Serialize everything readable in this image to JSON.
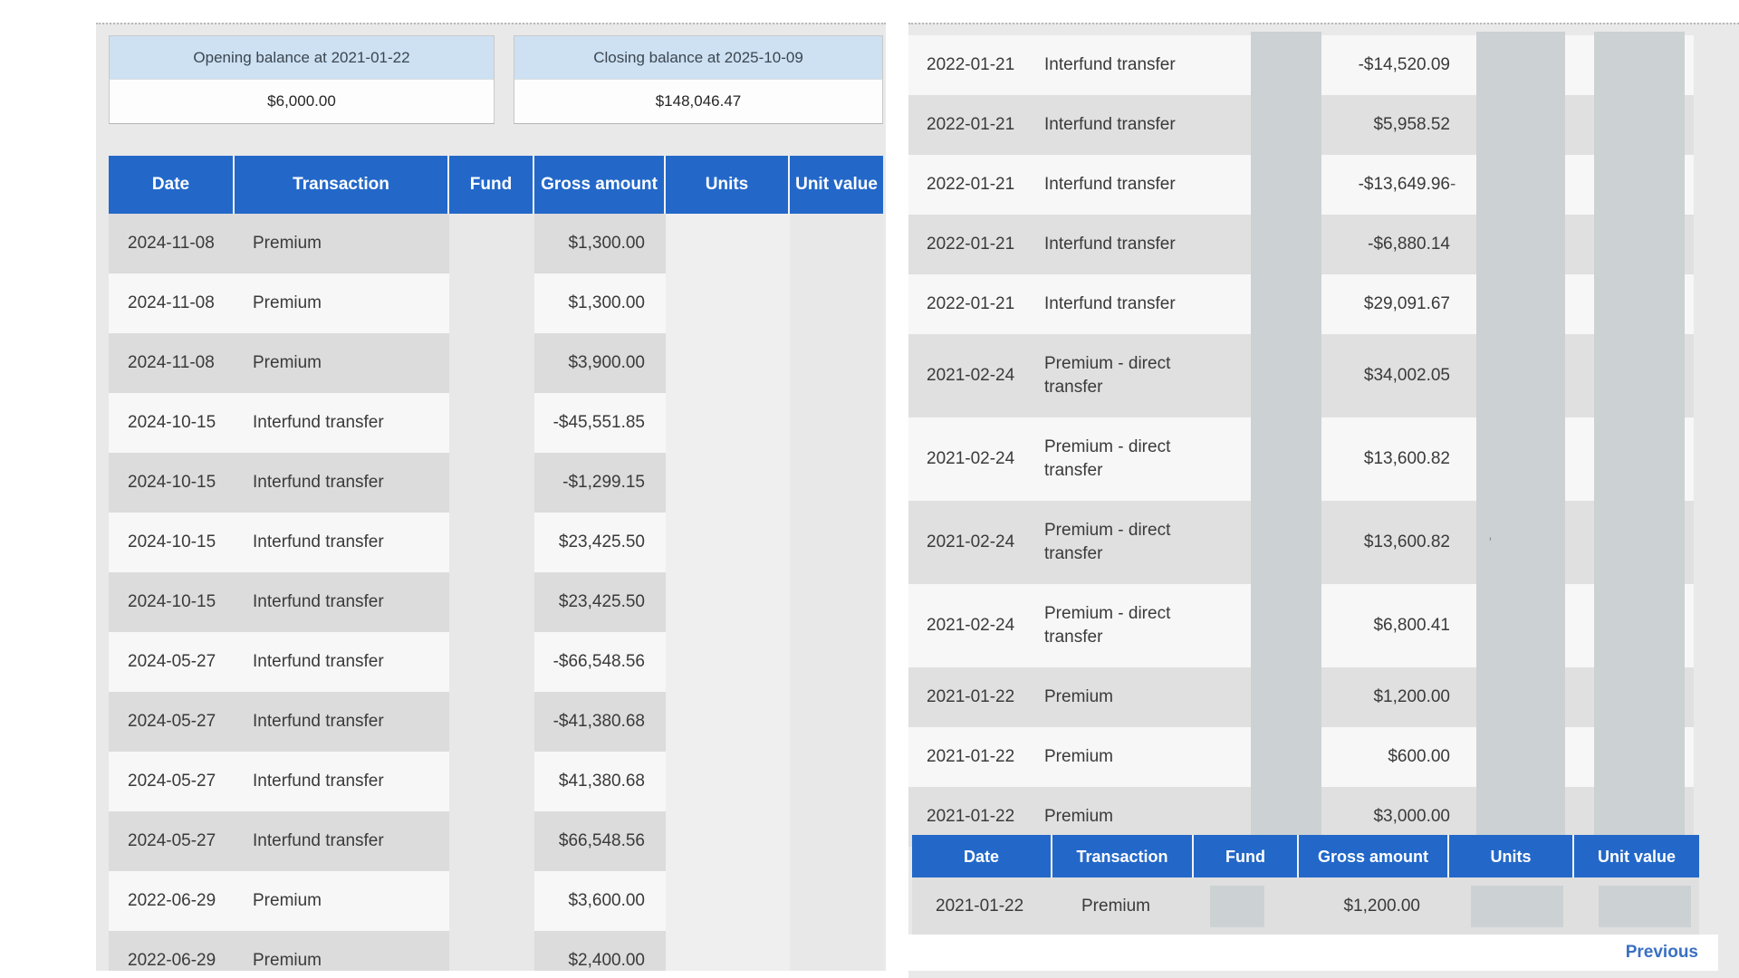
{
  "balances": {
    "opening": {
      "label": "Opening balance at 2021-01-22",
      "value": "$6,000.00"
    },
    "closing": {
      "label": "Closing balance at 2025-10-09",
      "value": "$148,046.47"
    }
  },
  "columns": [
    "Date",
    "Transaction",
    "Fund",
    "Gross amount",
    "Units",
    "Unit value"
  ],
  "left_table": {
    "rows": [
      {
        "date": "2024-11-08",
        "transaction": "Premium",
        "gross_amount": "$1,300.00"
      },
      {
        "date": "2024-11-08",
        "transaction": "Premium",
        "gross_amount": "$1,300.00"
      },
      {
        "date": "2024-11-08",
        "transaction": "Premium",
        "gross_amount": "$3,900.00"
      },
      {
        "date": "2024-10-15",
        "transaction": "Interfund transfer",
        "gross_amount": "-$45,551.85"
      },
      {
        "date": "2024-10-15",
        "transaction": "Interfund transfer",
        "gross_amount": "-$1,299.15"
      },
      {
        "date": "2024-10-15",
        "transaction": "Interfund transfer",
        "gross_amount": "$23,425.50"
      },
      {
        "date": "2024-10-15",
        "transaction": "Interfund transfer",
        "gross_amount": "$23,425.50"
      },
      {
        "date": "2024-05-27",
        "transaction": "Interfund transfer",
        "gross_amount": "-$66,548.56"
      },
      {
        "date": "2024-05-27",
        "transaction": "Interfund transfer",
        "gross_amount": "-$41,380.68"
      },
      {
        "date": "2024-05-27",
        "transaction": "Interfund transfer",
        "gross_amount": "$41,380.68"
      },
      {
        "date": "2024-05-27",
        "transaction": "Interfund transfer",
        "gross_amount": "$66,548.56"
      },
      {
        "date": "2022-06-29",
        "transaction": "Premium",
        "gross_amount": "$3,600.00"
      },
      {
        "date": "2022-06-29",
        "transaction": "Premium",
        "gross_amount": "$2,400.00"
      }
    ]
  },
  "right_table": {
    "rows": [
      {
        "date": "2022-01-21",
        "transaction": "Interfund transfer",
        "gross_amount": "-$14,520.09"
      },
      {
        "date": "2022-01-21",
        "transaction": "Interfund transfer",
        "gross_amount": "$5,958.52"
      },
      {
        "date": "2022-01-21",
        "transaction": "Interfund transfer",
        "gross_amount": "-$13,649.96",
        "units_partial": "-"
      },
      {
        "date": "2022-01-21",
        "transaction": "Interfund transfer",
        "gross_amount": "-$6,880.14"
      },
      {
        "date": "2022-01-21",
        "transaction": "Interfund transfer",
        "gross_amount": "$29,091.67"
      },
      {
        "date": "2021-02-24",
        "transaction": "Premium - direct transfer",
        "gross_amount": "$34,002.05"
      },
      {
        "date": "2021-02-24",
        "transaction": "Premium - direct transfer",
        "gross_amount": "$13,600.82"
      },
      {
        "date": "2021-02-24",
        "transaction": "Premium - direct transfer",
        "gross_amount": "$13,600.82",
        "units_partial": "'"
      },
      {
        "date": "2021-02-24",
        "transaction": "Premium - direct transfer",
        "gross_amount": "$6,800.41"
      },
      {
        "date": "2021-01-22",
        "transaction": "Premium",
        "gross_amount": "$1,200.00"
      },
      {
        "date": "2021-01-22",
        "transaction": "Premium",
        "gross_amount": "$600.00"
      },
      {
        "date": "2021-01-22",
        "transaction": "Premium",
        "gross_amount": "$3,000.00"
      }
    ]
  },
  "bottom_table": {
    "rows": [
      {
        "date": "2021-01-22",
        "transaction": "Premium",
        "gross_amount": "$1,200.00"
      }
    ]
  },
  "pagination": {
    "previous_label": "Previous"
  },
  "colors": {
    "header_blue": "#2368c9",
    "balance_header_blue": "#cde1f3",
    "row_dark": "#dcdcdc",
    "row_light": "#f7f7f7",
    "redaction_grey": "#ccd1d4",
    "link_blue": "#3a70c2"
  }
}
